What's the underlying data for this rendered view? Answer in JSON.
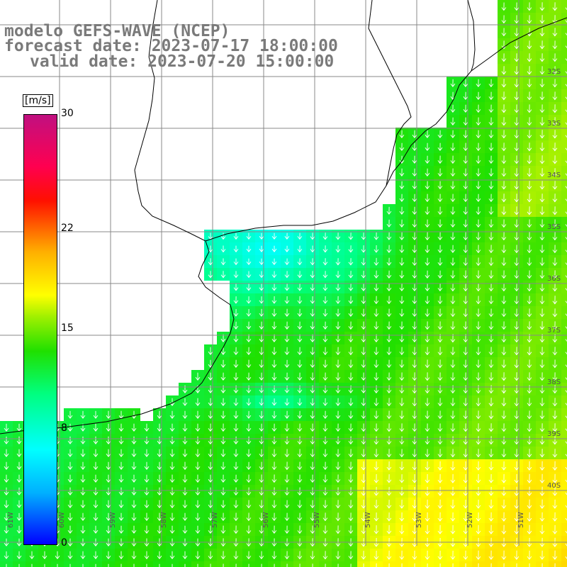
{
  "title": {
    "line1": "modelo GEFS-WAVE (NCEP)",
    "line2": "forecast date: 2023-07-17 18:00:00",
    "line3": "valid date: 2023-07-20 15:00:00"
  },
  "colorbar": {
    "unit": "[m/s]",
    "ticks": [
      "30",
      "22",
      "15",
      "8",
      "0"
    ],
    "tick_values": [
      30,
      22,
      15,
      8,
      0
    ],
    "range": [
      0,
      30
    ]
  },
  "lat_labels": [
    "32S",
    "33S",
    "34S",
    "35S",
    "36S",
    "37S",
    "38S",
    "39S",
    "40S"
  ],
  "lon_labels": [
    "61W",
    "60W",
    "59W",
    "58W",
    "57W",
    "56W",
    "55W",
    "54W",
    "53W",
    "52W",
    "51W"
  ],
  "colors": {
    "land": "#ffffff",
    "grid": "#888888",
    "coast": "#000000",
    "arrows": "#ffffff",
    "title": "#7a7a7a"
  }
}
